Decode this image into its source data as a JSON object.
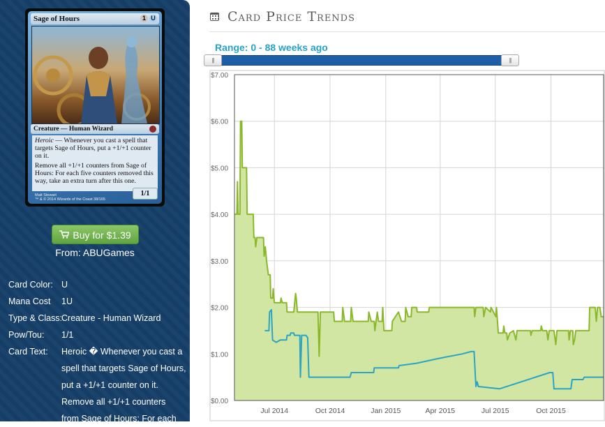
{
  "card": {
    "name": "Sage of Hours",
    "mana_cost": [
      "1",
      "U"
    ],
    "type_line": "Creature — Human Wizard",
    "ability_keyword": "Heroic",
    "ability_1_rest": " — Whenever you cast a spell that targets Sage of Hours, put a +1/+1 counter on it.",
    "ability_2": "Remove all +1/+1 counters from Sage of Hours: For each five counters removed this way, take an extra turn after this one.",
    "pt": "1/1",
    "artist": "Matt Stewart",
    "copyright": "™ & © 2014 Wizards of the Coast 38/165"
  },
  "buy": {
    "label": "Buy for $1.39",
    "from": "From: ABUGames",
    "icon": "cart-icon"
  },
  "info": [
    {
      "key": "Card Color:",
      "value": "U"
    },
    {
      "key": "Mana Cost",
      "value": "1U"
    },
    {
      "key": "Type & Class:",
      "value": "Creature - Human Wizard"
    },
    {
      "key": "Pow/Tou:",
      "value": "1/1"
    }
  ],
  "card_text": {
    "key": "Card Text:",
    "lines": [
      "Heroic � Whenever you cast a",
      "spell that targets Sage of Hours,",
      "put a +1/+1 counter on it.",
      "Remove all +1/+1 counters",
      "from Sage of Hours: For each"
    ]
  },
  "header": {
    "title": "Card Price Trends",
    "icon": "calendar-icon"
  },
  "range": {
    "label": "Range: 0 - 88 weeks ago",
    "min": 0,
    "max": 88,
    "low_handle_fraction": 0,
    "high_handle_fraction": 1
  },
  "colors": {
    "sidebar": "#163f68",
    "paper_price": "#8ab82a",
    "paper_fill": "#d2e6a3",
    "foil_price": "#2aa4c2",
    "slider": "#1e5da8",
    "range_text": "#27a3c8"
  },
  "chart_data": {
    "type": "line",
    "ylim": [
      0,
      7
    ],
    "y_ticks": [
      "$0.00",
      "$1.00",
      "$2.00",
      "$3.00",
      "$4.00",
      "$5.00",
      "$6.00",
      "$7.00"
    ],
    "x_ticks": [
      "Jul 2014",
      "Oct 2014",
      "Jan 2015",
      "Apr 2015",
      "Jul 2015",
      "Oct 2015"
    ],
    "x_tick_days": [
      0,
      92,
      184,
      274,
      365,
      457
    ],
    "xlim_days": [
      -66,
      544
    ],
    "grid": true,
    "series": [
      {
        "fill": true,
        "points": [
          [
            -66,
            4.0
          ],
          [
            -62,
            4.0
          ],
          [
            -61,
            4.7
          ],
          [
            -60,
            4.0
          ],
          [
            -57,
            4.0
          ],
          [
            -56,
            6.0
          ],
          [
            -54,
            6.0
          ],
          [
            -53,
            5.0
          ],
          [
            -46,
            5.0
          ],
          [
            -45,
            4.0
          ],
          [
            -35,
            4.0
          ],
          [
            -34,
            3.5
          ],
          [
            -32,
            3.5
          ],
          [
            -31,
            3.3
          ],
          [
            -29,
            3.5
          ],
          [
            -18,
            3.5
          ],
          [
            -17,
            3.1
          ],
          [
            -15,
            3.3
          ],
          [
            -13,
            3.0
          ],
          [
            -10,
            2.7
          ],
          [
            -7,
            2.7
          ],
          [
            -6,
            2.2
          ],
          [
            -3,
            2.2
          ],
          [
            -2,
            2.4
          ],
          [
            0,
            2.1
          ],
          [
            10,
            2.1
          ],
          [
            11,
            2.2
          ],
          [
            13,
            2.1
          ],
          [
            20,
            2.1
          ],
          [
            21,
            1.9
          ],
          [
            32,
            1.9
          ],
          [
            35,
            2.3
          ],
          [
            36,
            2.2
          ],
          [
            38,
            1.9
          ],
          [
            72,
            1.9
          ],
          [
            74,
            0.95
          ],
          [
            76,
            1.9
          ],
          [
            98,
            1.9
          ],
          [
            99,
            1.7
          ],
          [
            112,
            1.7
          ],
          [
            113,
            2.0
          ],
          [
            116,
            1.7
          ],
          [
            126,
            1.7
          ],
          [
            127,
            2.0
          ],
          [
            130,
            1.7
          ],
          [
            155,
            1.7
          ],
          [
            156,
            1.9
          ],
          [
            160,
            1.7
          ],
          [
            165,
            1.7
          ],
          [
            166,
            1.5
          ],
          [
            170,
            1.9
          ],
          [
            172,
            1.7
          ],
          [
            178,
            1.7
          ],
          [
            179,
            2.0
          ],
          [
            181,
            1.5
          ],
          [
            194,
            1.5
          ],
          [
            195,
            1.7
          ],
          [
            205,
            1.9
          ],
          [
            210,
            1.7
          ],
          [
            216,
            1.7
          ],
          [
            217,
            2.0
          ],
          [
            221,
            1.8
          ],
          [
            226,
            1.8
          ],
          [
            227,
            2.0
          ],
          [
            235,
            2.0
          ],
          [
            236,
            1.9
          ],
          [
            255,
            1.9
          ],
          [
            256,
            2.0
          ],
          [
            300,
            2.0
          ],
          [
            330,
            2.0
          ],
          [
            331,
            1.8
          ],
          [
            333,
            2.0
          ],
          [
            345,
            2.0
          ],
          [
            346,
            1.8
          ],
          [
            349,
            2.0
          ],
          [
            357,
            1.9
          ],
          [
            358,
            2.0
          ],
          [
            366,
            1.8
          ],
          [
            367,
            2.0
          ],
          [
            370,
            1.45
          ],
          [
            378,
            1.45
          ],
          [
            379,
            1.6
          ],
          [
            381,
            1.45
          ],
          [
            384,
            1.45
          ],
          [
            385,
            1.3
          ],
          [
            389,
            1.45
          ],
          [
            395,
            1.5
          ],
          [
            399,
            1.3
          ],
          [
            401,
            1.5
          ],
          [
            423,
            1.5
          ],
          [
            424,
            1.4
          ],
          [
            426,
            1.5
          ],
          [
            440,
            1.5
          ],
          [
            441,
            1.6
          ],
          [
            443,
            1.5
          ],
          [
            450,
            1.5
          ],
          [
            452,
            1.3
          ],
          [
            454,
            1.5
          ],
          [
            462,
            1.5
          ],
          [
            463,
            1.4
          ],
          [
            465,
            1.2
          ],
          [
            467,
            1.5
          ],
          [
            486,
            1.5
          ],
          [
            487,
            1.3
          ],
          [
            489,
            1.5
          ],
          [
            493,
            1.5
          ],
          [
            494,
            1.2
          ],
          [
            496,
            1.3
          ],
          [
            498,
            1.5
          ],
          [
            520,
            1.5
          ],
          [
            521,
            2.0
          ],
          [
            530,
            2.0
          ],
          [
            532,
            1.7
          ],
          [
            534,
            2.0
          ],
          [
            538,
            2.0
          ],
          [
            540,
            1.8
          ],
          [
            544,
            1.8
          ]
        ]
      },
      {
        "fill": false,
        "points": [
          [
            -16,
            1.5
          ],
          [
            -9,
            1.5
          ],
          [
            -8,
            1.9
          ],
          [
            -5,
            1.95
          ],
          [
            -3,
            1.3
          ],
          [
            3,
            1.25
          ],
          [
            10,
            1.3
          ],
          [
            20,
            1.3
          ],
          [
            21,
            1.4
          ],
          [
            26,
            1.4
          ],
          [
            27,
            1.45
          ],
          [
            32,
            1.45
          ],
          [
            33,
            1.4
          ],
          [
            42,
            1.4
          ],
          [
            43,
            0.5
          ],
          [
            45,
            1.4
          ],
          [
            52,
            1.4
          ],
          [
            55,
            1.35
          ],
          [
            57,
            0.5
          ],
          [
            125,
            0.5
          ],
          [
            127,
            0.6
          ],
          [
            164,
            0.6
          ],
          [
            165,
            0.7
          ],
          [
            205,
            0.7
          ],
          [
            206,
            0.75
          ],
          [
            235,
            0.8
          ],
          [
            270,
            0.9
          ],
          [
            310,
            1.0
          ],
          [
            325,
            1.05
          ],
          [
            330,
            1.05
          ],
          [
            333,
            0.3
          ],
          [
            335,
            0.4
          ],
          [
            337,
            0.3
          ],
          [
            372,
            0.25
          ],
          [
            455,
            0.6
          ],
          [
            460,
            0.6
          ],
          [
            462,
            0.25
          ],
          [
            490,
            0.25
          ],
          [
            492,
            0.45
          ],
          [
            510,
            0.45
          ],
          [
            512,
            0.5
          ],
          [
            544,
            0.5
          ]
        ]
      }
    ]
  }
}
